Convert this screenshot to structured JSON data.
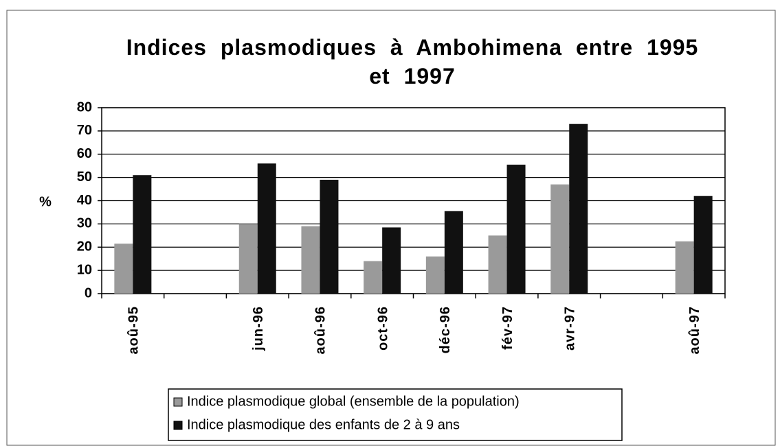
{
  "chart_data": {
    "type": "bar",
    "title": "Indices plasmodiques à Ambohimena entre 1995 et 1997",
    "y_label": "%",
    "categories": [
      "aoû-95",
      null,
      "jun-96",
      "aoû-96",
      "oct-96",
      "déc-96",
      "fév-97",
      "avr-97",
      null,
      "aoû-97"
    ],
    "series": [
      {
        "name": "Indice plasmodique global (ensemble de la population)",
        "color": "#9a9a9a",
        "values": [
          21.5,
          null,
          30,
          29,
          14,
          16,
          25,
          47,
          null,
          22.5
        ]
      },
      {
        "name": "Indice plasmodique des enfants de 2 à 9 ans",
        "color": "#111111",
        "values": [
          51,
          null,
          56,
          49,
          28.5,
          35.5,
          55.5,
          73,
          null,
          42
        ]
      }
    ],
    "ylim": [
      0,
      80
    ],
    "yticks": [
      0,
      10,
      20,
      30,
      40,
      50,
      60,
      70,
      80
    ],
    "grid": true
  }
}
